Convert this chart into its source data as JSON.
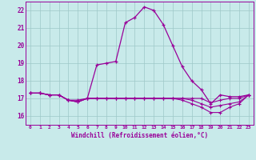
{
  "xlabel": "Windchill (Refroidissement éolien,°C)",
  "x_ticks": [
    0,
    1,
    2,
    3,
    4,
    5,
    6,
    7,
    8,
    9,
    10,
    11,
    12,
    13,
    14,
    15,
    16,
    17,
    18,
    19,
    20,
    21,
    22,
    23
  ],
  "ylim": [
    15.5,
    22.5
  ],
  "yticks": [
    16,
    17,
    18,
    19,
    20,
    21,
    22
  ],
  "background_color": "#c8eaea",
  "grid_color": "#9ec8c8",
  "line_color": "#990099",
  "series": {
    "line1": [
      17.3,
      17.3,
      17.2,
      17.2,
      16.9,
      16.9,
      17.0,
      18.9,
      19.0,
      19.1,
      21.3,
      21.6,
      22.2,
      22.0,
      21.2,
      20.0,
      18.8,
      18.0,
      17.5,
      16.7,
      17.2,
      17.1,
      17.1,
      17.2
    ],
    "line2": [
      17.3,
      17.3,
      17.2,
      17.2,
      16.9,
      16.8,
      17.0,
      17.0,
      17.0,
      17.0,
      17.0,
      17.0,
      17.0,
      17.0,
      17.0,
      17.0,
      17.0,
      17.0,
      17.0,
      16.75,
      16.9,
      17.0,
      17.0,
      17.2
    ],
    "line3": [
      17.3,
      17.3,
      17.2,
      17.2,
      16.9,
      16.8,
      17.0,
      17.0,
      17.0,
      17.0,
      17.0,
      17.0,
      17.0,
      17.0,
      17.0,
      17.0,
      17.0,
      16.9,
      16.7,
      16.5,
      16.6,
      16.7,
      16.8,
      17.2
    ],
    "line4": [
      17.3,
      17.3,
      17.2,
      17.2,
      16.9,
      16.8,
      17.0,
      17.0,
      17.0,
      17.0,
      17.0,
      17.0,
      17.0,
      17.0,
      17.0,
      17.0,
      16.9,
      16.7,
      16.5,
      16.2,
      16.2,
      16.5,
      16.7,
      17.2
    ]
  }
}
